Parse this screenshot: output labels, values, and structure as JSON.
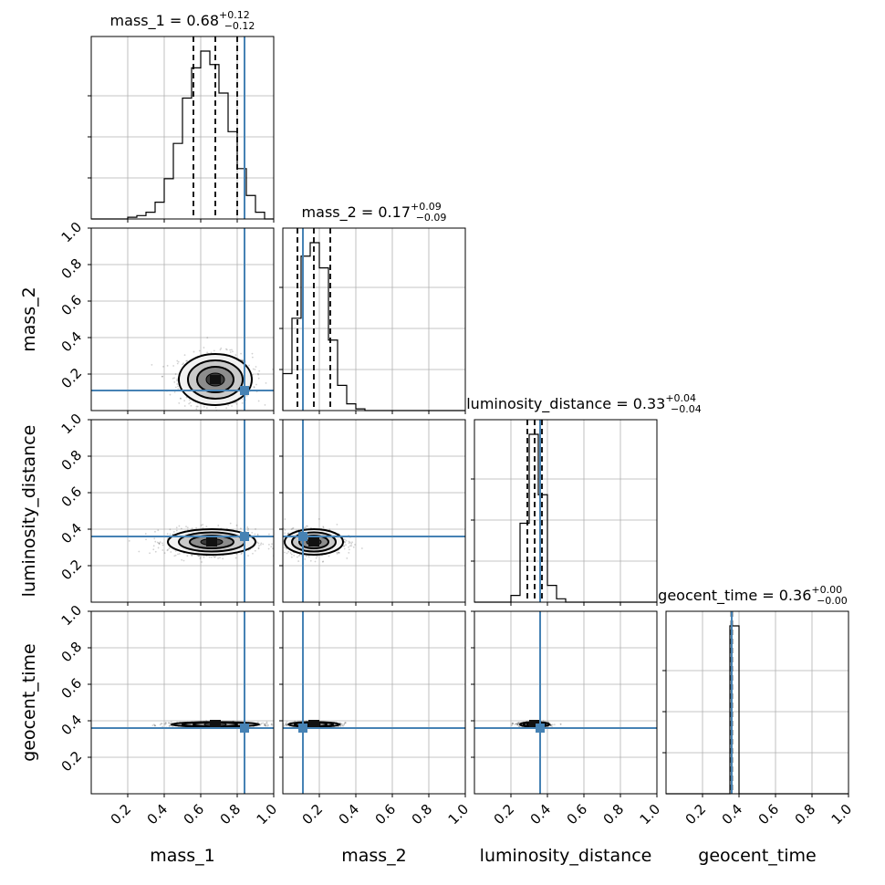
{
  "chart_data": {
    "type": "corner",
    "parameters": [
      "mass_1",
      "mass_2",
      "luminosity_distance",
      "geocent_time"
    ],
    "axis_range": [
      0,
      1
    ],
    "tick_labels": [
      "0.2",
      "0.4",
      "0.6",
      "0.8",
      "1.0"
    ],
    "truths": {
      "mass_1": 0.84,
      "mass_2": 0.11,
      "luminosity_distance": 0.36,
      "geocent_time": 0.36
    },
    "titles": [
      {
        "param": "mass_1",
        "prefix": "mass_1 = ",
        "median": "0.68",
        "plus": "+0.12",
        "minus": "−0.12"
      },
      {
        "param": "mass_2",
        "prefix": "mass_2 = ",
        "median": "0.17",
        "plus": "+0.09",
        "minus": "−0.09"
      },
      {
        "param": "luminosity_distance",
        "prefix": "luminosity_distance = ",
        "median": "0.33",
        "plus": "+0.04",
        "minus": "−0.04"
      },
      {
        "param": "geocent_time",
        "prefix": "geocent_time = ",
        "median": "0.36",
        "plus": "+0.00",
        "minus": "−0.00"
      }
    ],
    "histograms": [
      {
        "param": "mass_1",
        "bin_edges": [
          0.0,
          0.05,
          0.1,
          0.15,
          0.2,
          0.25,
          0.3,
          0.35,
          0.4,
          0.45,
          0.5,
          0.55,
          0.6,
          0.65,
          0.7,
          0.75,
          0.8,
          0.85,
          0.9,
          0.95,
          1.0
        ],
        "counts": [
          0,
          0,
          0,
          0,
          0.01,
          0.02,
          0.04,
          0.1,
          0.24,
          0.45,
          0.72,
          0.9,
          1.0,
          0.92,
          0.75,
          0.52,
          0.3,
          0.14,
          0.04,
          0
        ],
        "quantiles": [
          0.56,
          0.68,
          0.8
        ]
      },
      {
        "param": "mass_2",
        "bin_edges": [
          0.0,
          0.05,
          0.1,
          0.15,
          0.2,
          0.25,
          0.3,
          0.35,
          0.4,
          0.45,
          0.5,
          0.55,
          0.6,
          0.65,
          0.7,
          0.75,
          0.8,
          0.85,
          0.9,
          0.95,
          1.0
        ],
        "counts": [
          0.22,
          0.55,
          0.92,
          1.0,
          0.85,
          0.42,
          0.15,
          0.04,
          0.01,
          0,
          0,
          0,
          0,
          0,
          0,
          0,
          0,
          0,
          0,
          0
        ],
        "quantiles": [
          0.08,
          0.17,
          0.26
        ]
      },
      {
        "param": "luminosity_distance",
        "bin_edges": [
          0.0,
          0.05,
          0.1,
          0.15,
          0.2,
          0.25,
          0.3,
          0.35,
          0.4,
          0.45,
          0.5,
          0.55,
          0.6,
          0.65,
          0.7,
          0.75,
          0.8,
          0.85,
          0.9,
          0.95,
          1.0
        ],
        "counts": [
          0,
          0,
          0,
          0,
          0.04,
          0.47,
          1.0,
          0.64,
          0.1,
          0.02,
          0,
          0,
          0,
          0,
          0,
          0,
          0,
          0,
          0,
          0
        ],
        "quantiles": [
          0.29,
          0.33,
          0.37
        ]
      },
      {
        "param": "geocent_time",
        "bin_edges": [
          0.0,
          0.05,
          0.1,
          0.15,
          0.2,
          0.25,
          0.3,
          0.35,
          0.4,
          0.45,
          0.5,
          0.55,
          0.6,
          0.65,
          0.7,
          0.75,
          0.8,
          0.85,
          0.9,
          0.95,
          1.0
        ],
        "counts": [
          0,
          0,
          0,
          0,
          0,
          0,
          0,
          1.0,
          0,
          0,
          0,
          0,
          0,
          0,
          0,
          0,
          0,
          0,
          0,
          0
        ],
        "quantiles": [
          0.358,
          0.36,
          0.362
        ]
      }
    ],
    "density_2d": [
      {
        "x": "mass_1",
        "y": "mass_2",
        "center": [
          0.68,
          0.17
        ],
        "sigma": [
          0.1,
          0.07
        ]
      },
      {
        "x": "mass_1",
        "y": "luminosity_distance",
        "center": [
          0.66,
          0.33
        ],
        "sigma": [
          0.12,
          0.035
        ]
      },
      {
        "x": "mass_2",
        "y": "luminosity_distance",
        "center": [
          0.17,
          0.33
        ],
        "sigma": [
          0.08,
          0.035
        ]
      },
      {
        "x": "mass_1",
        "y": "geocent_time",
        "center": [
          0.68,
          0.38
        ],
        "sigma": [
          0.12,
          0.006
        ]
      },
      {
        "x": "mass_2",
        "y": "geocent_time",
        "center": [
          0.17,
          0.38
        ],
        "sigma": [
          0.07,
          0.006
        ]
      },
      {
        "x": "luminosity_distance",
        "y": "geocent_time",
        "center": [
          0.33,
          0.38
        ],
        "sigma": [
          0.04,
          0.006
        ]
      }
    ],
    "grid": true,
    "truth_color": "#4682b4"
  }
}
